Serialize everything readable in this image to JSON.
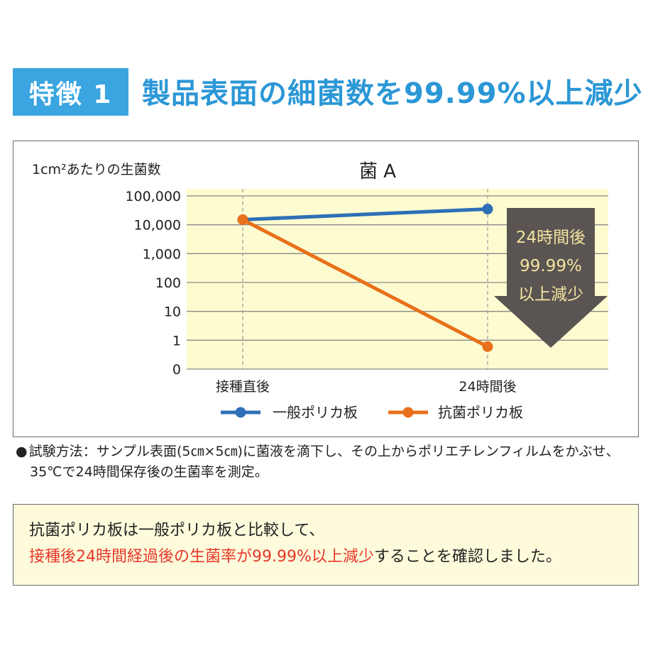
{
  "header": {
    "badge": "特徴 1",
    "title": "製品表面の細菌数を99.99%以上減少",
    "badge_color": "#3aa5e0",
    "title_color": "#2b97d6"
  },
  "chart_data": {
    "type": "line",
    "title": "菌 A",
    "ylabel": "1cm²あたりの生菌数",
    "y_scale": "log",
    "yticks": [
      "100,000",
      "10,000",
      "1,000",
      "100",
      "10",
      "1",
      "0"
    ],
    "categories": [
      "接種直後",
      "24時間後"
    ],
    "series": [
      {
        "name": "一般ポリカ板",
        "color": "#2e6fb7",
        "values": [
          15000,
          35000
        ]
      },
      {
        "name": "抗菌ポリカ板",
        "color": "#e8701a",
        "values": [
          15000,
          0.6
        ]
      }
    ],
    "plot_background": "#fdfbd0",
    "grid": true,
    "legend_position": "bottom",
    "annotation": {
      "lines": [
        "24時間後",
        "99.99%",
        "以上減少"
      ],
      "arrow_color": "#5a5552",
      "text_color": "#f3e3a0"
    }
  },
  "note": {
    "bullet": "●",
    "line1": "試験方法：サンプル表面(5㎝×5㎝)に菌液を滴下し、その上からポリエチレンフィルムをかぶせ、",
    "line2": "35℃で24時間保存後の生菌率を測定。"
  },
  "summary": {
    "line1": "抗菌ポリカ板は一般ポリカ板と比較して、",
    "line2_highlight": "接種後24時間経過後の生菌率が99.99%以上減少",
    "line2_rest": "することを確認しました。",
    "highlight_color": "#e8382b"
  }
}
